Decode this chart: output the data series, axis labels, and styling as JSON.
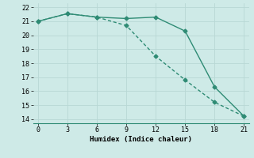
{
  "line1_x": [
    0,
    3,
    6,
    9,
    12,
    15,
    18,
    21
  ],
  "line1_y": [
    21.0,
    21.55,
    21.3,
    21.2,
    21.3,
    20.3,
    16.3,
    14.2
  ],
  "line2_x": [
    0,
    3,
    6,
    9,
    12,
    15,
    18,
    21
  ],
  "line2_y": [
    21.0,
    21.55,
    21.3,
    20.7,
    18.5,
    16.8,
    15.2,
    14.2
  ],
  "line_color": "#2e8b74",
  "bg_color": "#ceeae7",
  "grid_color": "#b8d8d5",
  "xlabel": "Humidex (Indice chaleur)",
  "xlim": [
    -0.5,
    21.5
  ],
  "ylim": [
    13.7,
    22.3
  ],
  "xticks": [
    0,
    3,
    6,
    9,
    12,
    15,
    18,
    21
  ],
  "yticks": [
    14,
    15,
    16,
    17,
    18,
    19,
    20,
    21,
    22
  ],
  "marker": "D",
  "markersize": 2.5,
  "linewidth": 1.0
}
